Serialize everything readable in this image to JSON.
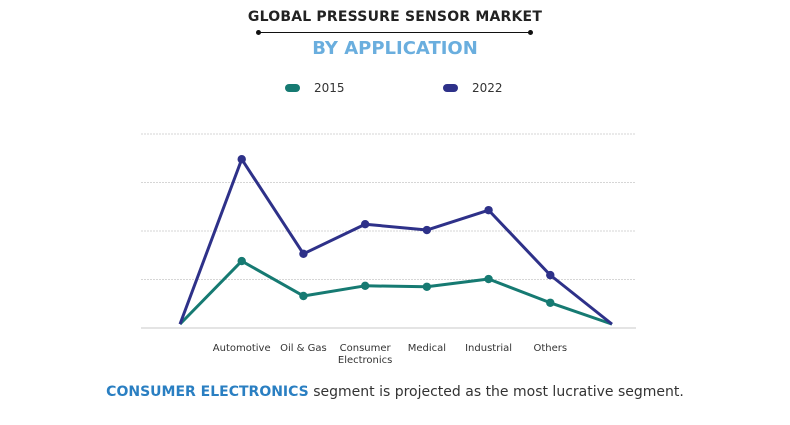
{
  "chart_data": {
    "type": "line",
    "title": "GLOBAL PRESSURE SENSOR MARKET",
    "subtitle": "BY APPLICATION",
    "categories": [
      "",
      "Automotive",
      "Oil & Gas",
      "Consumer Electronics",
      "Medical",
      "Industrial",
      "Others",
      ""
    ],
    "series": [
      {
        "name": "2015",
        "color": "#167a72",
        "values": [
          0.08,
          1.38,
          0.66,
          0.87,
          0.85,
          1.01,
          0.52,
          0.08
        ]
      },
      {
        "name": "2022",
        "color": "#2e3189",
        "values": [
          0.08,
          3.48,
          1.53,
          2.14,
          2.02,
          2.43,
          1.09,
          0.08
        ]
      }
    ],
    "ylim": [
      0,
      4
    ],
    "y_ticks_labeled": false,
    "grid": true,
    "legend_position": "top"
  },
  "caption": {
    "highlight": "CONSUMER ELECTRONICS",
    "rest": " segment is projected as the most lucrative segment."
  }
}
